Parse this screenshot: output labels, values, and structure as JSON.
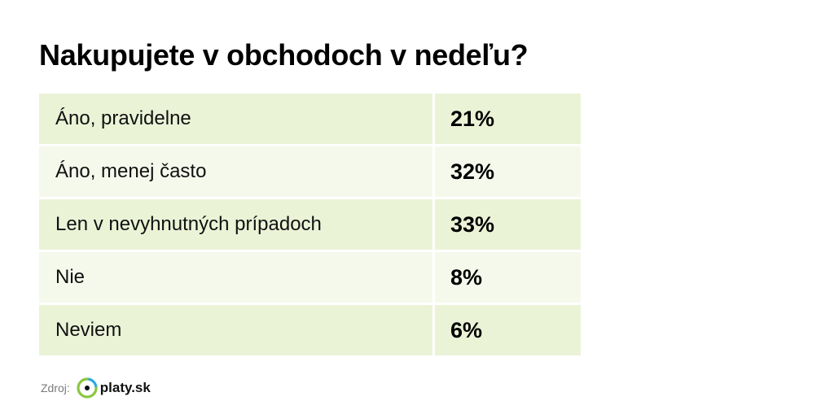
{
  "title": "Nakupujete v obchodoch v nedeľu?",
  "chart_data": {
    "type": "table",
    "title": "Nakupujete v obchodoch v nedeľu?",
    "rows": [
      {
        "label": "Áno, pravidelne",
        "value": "21%"
      },
      {
        "label": "Áno, menej často",
        "value": "32%"
      },
      {
        "label": "Len v nevyhnutných prípadoch",
        "value": "33%"
      },
      {
        "label": "Nie",
        "value": "8%"
      },
      {
        "label": "Neviem",
        "value": "6%"
      }
    ]
  },
  "source": {
    "label": "Zdroj:",
    "brand": "platy.sk"
  },
  "colors": {
    "row_dark": "#ebf3d7",
    "row_light": "#f5f9ec",
    "logo_green": "#8cc63f",
    "logo_blue": "#29a9e0"
  }
}
